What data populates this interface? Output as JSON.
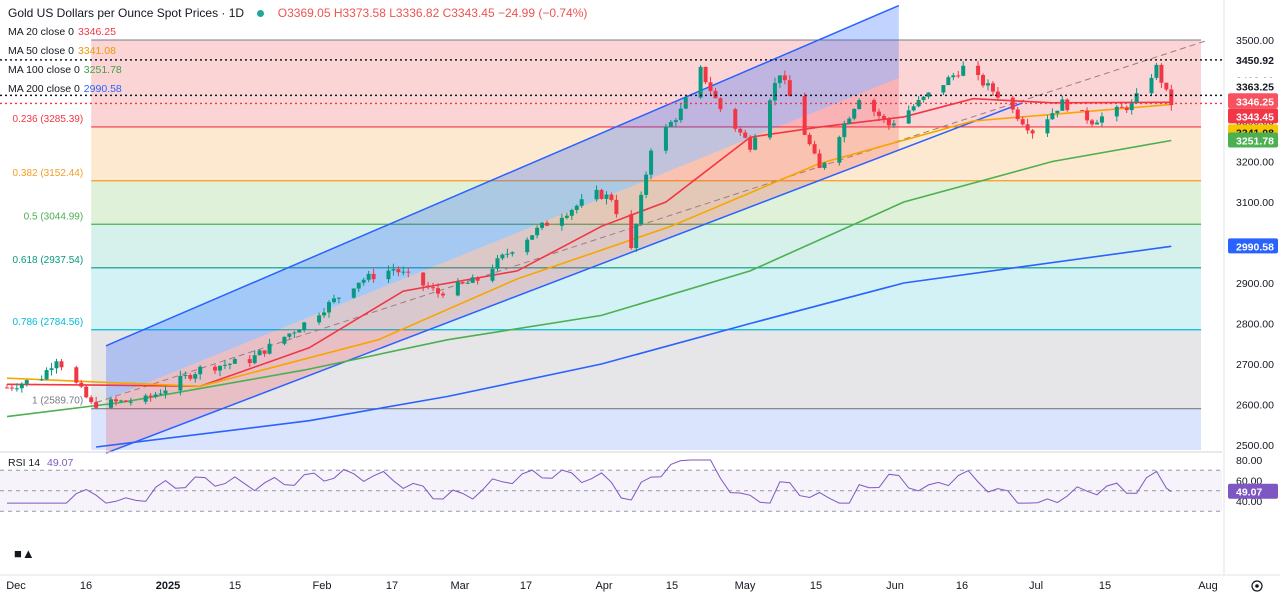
{
  "header": {
    "title": "Gold US Dollars per Ounce Spot Prices · 1D",
    "ohlc": "O3369.05 H3373.58 L3336.82 C3343.45 −24.99 (−0.74%)"
  },
  "moving_averages": [
    {
      "label": "MA 20 close 0",
      "value": "3346.25",
      "color": "#f23645"
    },
    {
      "label": "MA 50 close 0",
      "value": "3341.08",
      "color": "#f7a600"
    },
    {
      "label": "MA 100 close 0",
      "value": "3251.78",
      "color": "#4caf50"
    },
    {
      "label": "MA 200 close 0",
      "value": "2990.58",
      "color": "#2962ff"
    }
  ],
  "price_axis_ticks": [
    "3500.00",
    "3400.00",
    "3300.00",
    "3200.00",
    "3100.00",
    "3000.00",
    "2900.00",
    "2800.00",
    "2700.00",
    "2600.00",
    "2500.00"
  ],
  "price_tags": [
    {
      "text": "3450.92",
      "value": 3450.92,
      "bg": "#ffffff",
      "fg": "#131722"
    },
    {
      "text": "3363.25",
      "value": 3363.25,
      "bg": "#ffffff",
      "fg": "#131722"
    },
    {
      "text": "3346.25",
      "value": 3346.25,
      "bg": "#f7525f",
      "fg": "#ffffff"
    },
    {
      "text": "3343.45",
      "value": 3343.45,
      "bg": "#f23645",
      "fg": "#ffffff"
    },
    {
      "text": "3341.08",
      "value": 3341.08,
      "bg": "#f7c600",
      "fg": "#131722"
    },
    {
      "text": "3251.78",
      "value": 3251.78,
      "bg": "#4caf50",
      "fg": "#ffffff"
    },
    {
      "text": "2990.58",
      "value": 2990.58,
      "bg": "#2962ff",
      "fg": "#ffffff"
    }
  ],
  "fib_levels": [
    {
      "ratio": "0.236",
      "label": "0.236 (3285.39)",
      "value": 3285.39,
      "color": "#f23645",
      "fill": "#fbd5d6"
    },
    {
      "ratio": "0.382",
      "label": "0.382 (3152.44)",
      "value": 3152.44,
      "color": "#f59d23",
      "fill": "#fde9cf"
    },
    {
      "ratio": "0.5",
      "label": "0.5 (3044.99)",
      "value": 3044.99,
      "color": "#4caf50",
      "fill": "#dff1d9"
    },
    {
      "ratio": "0.618",
      "label": "0.618 (2937.54)",
      "value": 2937.54,
      "color": "#089981",
      "fill": "#d6f1ec"
    },
    {
      "ratio": "0.786",
      "label": "0.786 (2784.56)",
      "value": 2784.56,
      "color": "#00bcd4",
      "fill": "#d3f2f6"
    },
    {
      "ratio": "1",
      "label": "1 (2589.70)",
      "value": 2589.7,
      "color": "#787b86",
      "fill": "#e6e6e9"
    }
  ],
  "fib_top": 3500,
  "rsi": {
    "label": "RSI 14",
    "value": "49.07",
    "ticks": [
      "80.00",
      "60.00",
      "40.00"
    ]
  },
  "time_axis_labels": [
    "Dec",
    "16",
    "2025",
    "15",
    "Feb",
    "17",
    "Mar",
    "17",
    "Apr",
    "15",
    "May",
    "15",
    "Jun",
    "16",
    "Jul",
    "15",
    "Aug"
  ],
  "chart_data": {
    "type": "candlestick",
    "title": "Gold US Dollars per Ounce Spot Prices · 1D",
    "xlabel": "",
    "ylabel": "",
    "ylim": [
      2480,
      3530
    ],
    "x_range": [
      "2024-12-01",
      "2025-08-01"
    ],
    "last": {
      "open": 3369.05,
      "high": 3373.58,
      "low": 3336.82,
      "close": 3343.45,
      "change": -24.99,
      "change_pct": -0.74
    },
    "close_anchors": [
      [
        "2024-12-02",
        2642
      ],
      [
        "2024-12-09",
        2668
      ],
      [
        "2024-12-12",
        2715
      ],
      [
        "2024-12-16",
        2650
      ],
      [
        "2024-12-19",
        2600
      ],
      [
        "2024-12-30",
        2612
      ],
      [
        "2025-01-10",
        2688
      ],
      [
        "2025-01-20",
        2710
      ],
      [
        "2025-01-31",
        2800
      ],
      [
        "2025-02-11",
        2905
      ],
      [
        "2025-02-18",
        2935
      ],
      [
        "2025-02-27",
        2875
      ],
      [
        "2025-03-07",
        2908
      ],
      [
        "2025-03-14",
        2985
      ],
      [
        "2025-03-20",
        3040
      ],
      [
        "2025-03-31",
        3120
      ],
      [
        "2025-04-03",
        3110
      ],
      [
        "2025-04-07",
        2980
      ],
      [
        "2025-04-11",
        3235
      ],
      [
        "2025-04-17",
        3325
      ],
      [
        "2025-04-21",
        3425
      ],
      [
        "2025-04-25",
        3330
      ],
      [
        "2025-05-01",
        3240
      ],
      [
        "2025-05-07",
        3420
      ],
      [
        "2025-05-15",
        3180
      ],
      [
        "2025-05-23",
        3360
      ],
      [
        "2025-05-29",
        3290
      ],
      [
        "2025-06-05",
        3355
      ],
      [
        "2025-06-13",
        3432
      ],
      [
        "2025-06-20",
        3365
      ],
      [
        "2025-06-27",
        3275
      ],
      [
        "2025-07-03",
        3345
      ],
      [
        "2025-07-09",
        3300
      ],
      [
        "2025-07-17",
        3340
      ],
      [
        "2025-07-22",
        3432
      ],
      [
        "2025-07-24",
        3368
      ],
      [
        "2025-07-25",
        3343.45
      ]
    ],
    "series": [
      {
        "name": "MA 20 close 0",
        "last": 3346.25,
        "color": "#f23645",
        "points": [
          [
            "2024-12-02",
            2650
          ],
          [
            "2024-12-20",
            2648
          ],
          [
            "2025-01-10",
            2645
          ],
          [
            "2025-02-01",
            2740
          ],
          [
            "2025-02-20",
            2880
          ],
          [
            "2025-03-15",
            2930
          ],
          [
            "2025-04-01",
            3040
          ],
          [
            "2025-04-14",
            3100
          ],
          [
            "2025-05-01",
            3260
          ],
          [
            "2025-05-15",
            3285
          ],
          [
            "2025-06-01",
            3310
          ],
          [
            "2025-06-15",
            3355
          ],
          [
            "2025-07-01",
            3345
          ],
          [
            "2025-07-25",
            3346.25
          ]
        ]
      },
      {
        "name": "MA 50 close 0",
        "last": 3341.08,
        "color": "#f7a600",
        "points": [
          [
            "2024-12-02",
            2665
          ],
          [
            "2025-01-10",
            2645
          ],
          [
            "2025-02-15",
            2760
          ],
          [
            "2025-03-15",
            2910
          ],
          [
            "2025-04-15",
            3040
          ],
          [
            "2025-05-15",
            3195
          ],
          [
            "2025-06-15",
            3300
          ],
          [
            "2025-07-25",
            3341.08
          ]
        ]
      },
      {
        "name": "MA 100 close 0",
        "last": 3251.78,
        "color": "#4caf50",
        "points": [
          [
            "2024-12-02",
            2570
          ],
          [
            "2024-12-25",
            2605
          ],
          [
            "2025-01-31",
            2685
          ],
          [
            "2025-03-01",
            2760
          ],
          [
            "2025-04-01",
            2820
          ],
          [
            "2025-05-01",
            2930
          ],
          [
            "2025-06-01",
            3100
          ],
          [
            "2025-07-01",
            3200
          ],
          [
            "2025-07-25",
            3251.78
          ]
        ]
      },
      {
        "name": "MA 200 close 0",
        "last": 2990.58,
        "color": "#2962ff",
        "points": [
          [
            "2024-12-20",
            2495
          ],
          [
            "2025-02-01",
            2560
          ],
          [
            "2025-03-01",
            2620
          ],
          [
            "2025-04-01",
            2700
          ],
          [
            "2025-05-01",
            2800
          ],
          [
            "2025-06-01",
            2900
          ],
          [
            "2025-07-25",
            2990.58
          ]
        ]
      }
    ],
    "channel": {
      "lower": [
        [
          "2024-12-22",
          2480
        ],
        [
          "2025-06-25",
          3345
        ]
      ],
      "upper": [
        [
          "2024-12-22",
          2745
        ],
        [
          "2025-05-31",
          3585
        ]
      ],
      "start": "2024-12-22",
      "end": "2025-05-31"
    },
    "trendline": [
      [
        "2024-12-20",
        2605
      ],
      [
        "2025-08-01",
        3498
      ]
    ],
    "fib_retracement": {
      "start": "2024-12-19",
      "end": "2025-07-31",
      "high": 3500,
      "low": 2589.7
    }
  }
}
